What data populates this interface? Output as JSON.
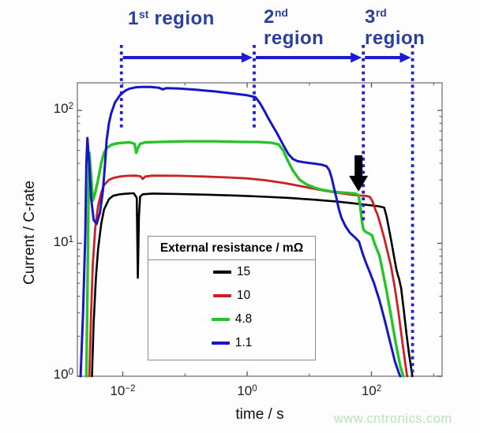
{
  "annotations": {
    "color": "#2b3f9e",
    "arrow_color": "#1a1ad2",
    "dotted_line_color": "#2121cc",
    "regions": [
      {
        "ordinal": "1",
        "suffix": "st",
        "word": "region",
        "start_t": 0.0095,
        "end_t": 1.3
      },
      {
        "ordinal": "2",
        "suffix": "nd",
        "word": "region",
        "start_t": 1.3,
        "end_t": 74
      },
      {
        "ordinal": "3",
        "suffix": "rd",
        "word": "region",
        "start_t": 74,
        "end_t": 458
      }
    ],
    "marker_arrow": {
      "t": 62,
      "tip_value": 24.5,
      "top_value": 46,
      "color": "#000000"
    }
  },
  "axes": {
    "x": {
      "label": "time / s",
      "scale": "log",
      "tick_exponents": [
        -2,
        0,
        2
      ],
      "minor_decade_exponents": [
        -1,
        1,
        3
      ]
    },
    "y": {
      "label": "Current / C-rate",
      "scale": "log",
      "tick_exponents": [
        0,
        1,
        2
      ]
    }
  },
  "legend": {
    "title": "External resistance / mΩ",
    "entries": [
      {
        "label": "15",
        "color": "#000000"
      },
      {
        "label": "10",
        "color": "#cb2024"
      },
      {
        "label": "4.8",
        "color": "#27c427"
      },
      {
        "label": "1.1",
        "color": "#1616c8"
      }
    ]
  },
  "watermark": {
    "text": "www.cntronics.com",
    "color": "#b5e5b5"
  },
  "chart_data": {
    "type": "line",
    "x_scale": "log",
    "y_scale": "log",
    "xlabel": "time / s",
    "ylabel": "Current / C-rate",
    "xlim": [
      0.0019,
      1400
    ],
    "ylim": [
      1,
      160
    ],
    "grid": false,
    "legend_position": "inside lower-center",
    "series": [
      {
        "name": "15",
        "color": "#000000",
        "width": 2.6,
        "points": [
          [
            0.0032,
            1
          ],
          [
            0.0034,
            2.5
          ],
          [
            0.0037,
            5.5
          ],
          [
            0.004,
            9
          ],
          [
            0.0045,
            14
          ],
          [
            0.005,
            18
          ],
          [
            0.006,
            21.5
          ],
          [
            0.007,
            22.8
          ],
          [
            0.009,
            23.4
          ],
          [
            0.012,
            23.7
          ],
          [
            0.015,
            23.8
          ],
          [
            0.0168,
            22
          ],
          [
            0.0175,
            5.5
          ],
          [
            0.0182,
            16
          ],
          [
            0.019,
            22.5
          ],
          [
            0.021,
            23.4
          ],
          [
            0.03,
            23.7
          ],
          [
            0.08,
            23.5
          ],
          [
            0.25,
            23.2
          ],
          [
            0.8,
            22.8
          ],
          [
            2,
            22.4
          ],
          [
            5,
            21.9
          ],
          [
            12,
            21.3
          ],
          [
            28,
            20.6
          ],
          [
            55,
            19.9
          ],
          [
            90,
            19.4
          ],
          [
            130,
            19
          ],
          [
            160,
            18.6
          ],
          [
            175,
            16
          ],
          [
            190,
            13
          ],
          [
            205,
            10.8
          ],
          [
            220,
            9
          ],
          [
            235,
            7.6
          ],
          [
            250,
            6.5
          ],
          [
            265,
            5.8
          ],
          [
            278,
            5.4
          ],
          [
            300,
            4.6
          ],
          [
            330,
            3.2
          ],
          [
            365,
            2.1
          ],
          [
            400,
            1.5
          ],
          [
            435,
            1.15
          ],
          [
            455,
            1
          ]
        ]
      },
      {
        "name": "10",
        "color": "#cb2024",
        "width": 2.8,
        "points": [
          [
            0.0029,
            1
          ],
          [
            0.0031,
            3
          ],
          [
            0.0033,
            7
          ],
          [
            0.0036,
            13
          ],
          [
            0.004,
            19
          ],
          [
            0.0045,
            24
          ],
          [
            0.005,
            27.5
          ],
          [
            0.006,
            30
          ],
          [
            0.007,
            31
          ],
          [
            0.009,
            31.8
          ],
          [
            0.012,
            32.2
          ],
          [
            0.016,
            32.3
          ],
          [
            0.019,
            32
          ],
          [
            0.021,
            30.5
          ],
          [
            0.023,
            31.8
          ],
          [
            0.03,
            32.3
          ],
          [
            0.08,
            32.2
          ],
          [
            0.2,
            31.8
          ],
          [
            0.5,
            31.3
          ],
          [
            1,
            30.8
          ],
          [
            2,
            29.8
          ],
          [
            4,
            28.4
          ],
          [
            7,
            27
          ],
          [
            12,
            25.7
          ],
          [
            20,
            24.6
          ],
          [
            32,
            23.8
          ],
          [
            48,
            23.2
          ],
          [
            65,
            22.9
          ],
          [
            85,
            22.7
          ],
          [
            95,
            22.3
          ],
          [
            105,
            20.5
          ],
          [
            115,
            18
          ],
          [
            125,
            16.5
          ],
          [
            140,
            13.8
          ],
          [
            160,
            11
          ],
          [
            180,
            8.8
          ],
          [
            205,
            6.8
          ],
          [
            235,
            4.8
          ],
          [
            270,
            3.1
          ],
          [
            310,
            1.9
          ],
          [
            350,
            1.25
          ],
          [
            375,
            1
          ]
        ]
      },
      {
        "name": "4.8",
        "color": "#27c427",
        "width": 3.4,
        "points": [
          [
            0.0026,
            1
          ],
          [
            0.0027,
            4
          ],
          [
            0.0028,
            20
          ],
          [
            0.0029,
            48
          ],
          [
            0.0031,
            32
          ],
          [
            0.0033,
            21
          ],
          [
            0.0036,
            24
          ],
          [
            0.004,
            30
          ],
          [
            0.0045,
            40
          ],
          [
            0.005,
            48
          ],
          [
            0.0055,
            52
          ],
          [
            0.0065,
            55
          ],
          [
            0.008,
            56.5
          ],
          [
            0.01,
            57
          ],
          [
            0.013,
            57.5
          ],
          [
            0.0155,
            56
          ],
          [
            0.0165,
            48
          ],
          [
            0.0175,
            52
          ],
          [
            0.019,
            56
          ],
          [
            0.023,
            57.5
          ],
          [
            0.04,
            58
          ],
          [
            0.1,
            58.5
          ],
          [
            0.3,
            58.5
          ],
          [
            0.8,
            58
          ],
          [
            1.5,
            57.8
          ],
          [
            2.5,
            57
          ],
          [
            3.2,
            55.5
          ],
          [
            3.8,
            50
          ],
          [
            4.5,
            42
          ],
          [
            5.5,
            35
          ],
          [
            7,
            30
          ],
          [
            9,
            27.8
          ],
          [
            12,
            26.3
          ],
          [
            16,
            25.3
          ],
          [
            22,
            24.6
          ],
          [
            30,
            24.2
          ],
          [
            42,
            23.9
          ],
          [
            55,
            23.7
          ],
          [
            62,
            23
          ],
          [
            66,
            19
          ],
          [
            70,
            15
          ],
          [
            74,
            12.8
          ],
          [
            80,
            12.2
          ],
          [
            90,
            11.9
          ],
          [
            102,
            11.5
          ],
          [
            112,
            10
          ],
          [
            125,
            8.8
          ],
          [
            135,
            8
          ],
          [
            150,
            6.3
          ],
          [
            175,
            4.4
          ],
          [
            205,
            2.9
          ],
          [
            245,
            1.8
          ],
          [
            290,
            1.2
          ],
          [
            325,
            1
          ]
        ]
      },
      {
        "name": "1.1",
        "color": "#1616c8",
        "width": 3.0,
        "points": [
          [
            0.0021,
            1
          ],
          [
            0.0023,
            3
          ],
          [
            0.0025,
            12
          ],
          [
            0.0026,
            40
          ],
          [
            0.0027,
            62
          ],
          [
            0.0029,
            38
          ],
          [
            0.0031,
            22
          ],
          [
            0.0034,
            15
          ],
          [
            0.0038,
            14
          ],
          [
            0.0043,
            17
          ],
          [
            0.0048,
            25
          ],
          [
            0.0052,
            40
          ],
          [
            0.0055,
            60
          ],
          [
            0.006,
            80
          ],
          [
            0.0065,
            95
          ],
          [
            0.0075,
            115
          ],
          [
            0.009,
            130
          ],
          [
            0.011,
            141
          ],
          [
            0.013,
            146
          ],
          [
            0.016,
            149
          ],
          [
            0.02,
            150
          ],
          [
            0.028,
            150
          ],
          [
            0.038,
            148
          ],
          [
            0.044,
            144
          ],
          [
            0.05,
            147
          ],
          [
            0.08,
            146
          ],
          [
            0.15,
            143
          ],
          [
            0.3,
            139
          ],
          [
            0.6,
            134
          ],
          [
            1,
            130
          ],
          [
            1.35,
            126
          ],
          [
            1.6,
            114
          ],
          [
            1.9,
            99
          ],
          [
            2.2,
            87
          ],
          [
            2.6,
            76
          ],
          [
            3.1,
            66
          ],
          [
            3.8,
            55
          ],
          [
            4.6,
            47
          ],
          [
            5.5,
            43
          ],
          [
            6.5,
            41.5
          ],
          [
            8,
            40.8
          ],
          [
            10,
            40.2
          ],
          [
            13,
            39.6
          ],
          [
            16,
            39
          ],
          [
            19,
            38
          ],
          [
            21,
            35.5
          ],
          [
            23,
            31
          ],
          [
            25,
            26
          ],
          [
            27,
            22.5
          ],
          [
            30,
            18
          ],
          [
            33,
            15.5
          ],
          [
            38,
            13.5
          ],
          [
            45,
            12
          ],
          [
            55,
            11
          ],
          [
            63,
            10.3
          ],
          [
            72,
            8.4
          ],
          [
            80,
            7.3
          ],
          [
            95,
            6
          ],
          [
            110,
            5
          ],
          [
            135,
            3.7
          ],
          [
            165,
            2.6
          ],
          [
            200,
            1.8
          ],
          [
            240,
            1.28
          ],
          [
            280,
            1.04
          ],
          [
            291,
            1
          ]
        ]
      }
    ]
  }
}
